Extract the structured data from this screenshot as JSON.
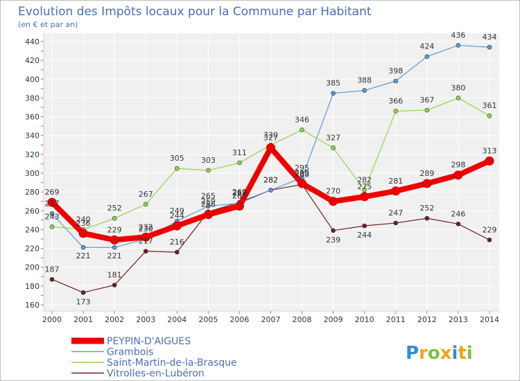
{
  "chart_data": {
    "type": "line",
    "title": "Evolution des Impôts locaux pour la Commune par Habitant",
    "subtitle": "(en € et par an)",
    "x": [
      2000,
      2001,
      2002,
      2003,
      2004,
      2005,
      2006,
      2007,
      2008,
      2009,
      2010,
      2011,
      2012,
      2013,
      2014
    ],
    "ylim": [
      160,
      440
    ],
    "yticks": [
      160,
      180,
      200,
      220,
      240,
      260,
      280,
      300,
      320,
      340,
      360,
      380,
      400,
      420,
      440
    ],
    "grid": true,
    "legend_position": "bottom-left",
    "series": [
      {
        "name": "PEYPIN-D'AIGUES",
        "color": "#ee0000",
        "values": [
          269,
          236,
          229,
          232,
          244,
          256,
          265,
          327,
          289,
          270,
          275,
          281,
          289,
          298,
          313
        ]
      },
      {
        "name": "Grambois",
        "color": "#5b9bd5",
        "values": [
          257,
          221,
          221,
          230,
          249,
          265,
          268,
          282,
          295,
          385,
          388,
          398,
          424,
          436,
          434
        ]
      },
      {
        "name": "Saint-Martin-de-la-Brasque",
        "color": "#8ed54b",
        "values": [
          243,
          240,
          252,
          267,
          305,
          303,
          311,
          330,
          346,
          327,
          282,
          366,
          367,
          380,
          361
        ]
      },
      {
        "name": "Vitrolles-en-Lubéron",
        "color": "#6b1f1f",
        "values": [
          187,
          173,
          181,
          217,
          216,
          259,
          269,
          282,
          288,
          239,
          244,
          247,
          252,
          246,
          229
        ]
      }
    ]
  },
  "brand": {
    "text": "Proxiti",
    "letters": [
      "P",
      "r",
      "o",
      "x",
      "i",
      "t",
      "i"
    ],
    "colors": [
      "#2b8fd9",
      "#f2a51a",
      "#7cc242",
      "#f2a51a",
      "#2b8fd9",
      "#f2a51a",
      "#7cc242"
    ]
  }
}
